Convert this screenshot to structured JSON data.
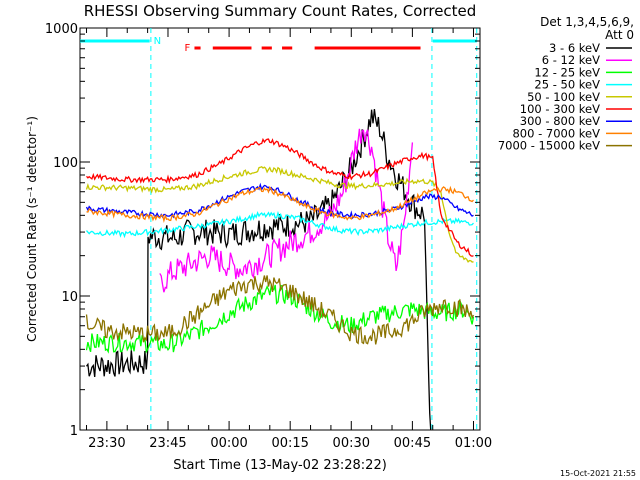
{
  "chart_data": {
    "type": "line",
    "title": "RHESSI Observing Summary Count Rates, Corrected",
    "xlabel": "Start Time (13-May-02 23:28:22)",
    "ylabel": "Corrected Count Rate (s⁻¹ detector⁻¹)",
    "yscale": "log",
    "ylim": [
      1,
      1000
    ],
    "xlim_minutes": [
      23.4,
      121.6
    ],
    "y_ticks": [
      {
        "value": 1,
        "label": "1"
      },
      {
        "value": 10,
        "label": "10"
      },
      {
        "value": 100,
        "label": "100"
      },
      {
        "value": 1000,
        "label": "1000"
      }
    ],
    "x_ticks": [
      {
        "minutes": 30,
        "label": "23:30"
      },
      {
        "minutes": 45,
        "label": "23:45"
      },
      {
        "minutes": 60,
        "label": "00:00"
      },
      {
        "minutes": 75,
        "label": "00:15"
      },
      {
        "minutes": 90,
        "label": "00:30"
      },
      {
        "minutes": 105,
        "label": "00:45"
      },
      {
        "minutes": 120,
        "label": "01:00"
      }
    ],
    "legend_header": [
      "Det 1,3,4,5,6,9,",
      "Att 0"
    ],
    "legend_position": "right",
    "series": [
      {
        "name": "3 - 6 keV",
        "color": "#000000",
        "points": [
          [
            25,
            3
          ],
          [
            40,
            3.2
          ],
          [
            40.1,
            28
          ],
          [
            47,
            27
          ],
          [
            50,
            30
          ],
          [
            55,
            30
          ],
          [
            60,
            29
          ],
          [
            65,
            31
          ],
          [
            70,
            33
          ],
          [
            75,
            34
          ],
          [
            80,
            36
          ],
          [
            85,
            48
          ],
          [
            90,
            90
          ],
          [
            93,
            150
          ],
          [
            95,
            220
          ],
          [
            97,
            180
          ],
          [
            99,
            110
          ],
          [
            101,
            80
          ],
          [
            104,
            55
          ],
          [
            106,
            45
          ],
          [
            108,
            40
          ],
          [
            109,
            2
          ],
          [
            109.5,
            1
          ]
        ]
      },
      {
        "name": "6 - 12 keV",
        "color": "#ff00ff",
        "points": [
          [
            43,
            12
          ],
          [
            46,
            15
          ],
          [
            50,
            17
          ],
          [
            55,
            20
          ],
          [
            60,
            17
          ],
          [
            63,
            16
          ],
          [
            67,
            18
          ],
          [
            71,
            21
          ],
          [
            75,
            25
          ],
          [
            80,
            30
          ],
          [
            85,
            40
          ],
          [
            88,
            60
          ],
          [
            91,
            130
          ],
          [
            93,
            190
          ],
          [
            95,
            130
          ],
          [
            97,
            60
          ],
          [
            99,
            28
          ],
          [
            101,
            16
          ],
          [
            103,
            35
          ],
          [
            105,
            140
          ]
        ]
      },
      {
        "name": "12 - 25 keV",
        "color": "#00ff00",
        "points": [
          [
            25,
            4.5
          ],
          [
            40,
            4.5
          ],
          [
            45,
            4.3
          ],
          [
            50,
            5
          ],
          [
            55,
            6
          ],
          [
            60,
            7.5
          ],
          [
            65,
            9
          ],
          [
            70,
            10.5
          ],
          [
            75,
            10
          ],
          [
            80,
            8
          ],
          [
            85,
            6.5
          ],
          [
            90,
            6
          ],
          [
            95,
            7
          ],
          [
            100,
            7.5
          ],
          [
            105,
            8
          ],
          [
            110,
            7.5
          ],
          [
            113,
            7.5
          ],
          [
            117,
            8
          ],
          [
            120,
            7
          ]
        ]
      },
      {
        "name": "25 - 50 keV",
        "color": "#00ffff",
        "points": [
          [
            25,
            30
          ],
          [
            35,
            29
          ],
          [
            45,
            31
          ],
          [
            55,
            34
          ],
          [
            62,
            37
          ],
          [
            67,
            40
          ],
          [
            72,
            40
          ],
          [
            77,
            38
          ],
          [
            82,
            34
          ],
          [
            87,
            31
          ],
          [
            92,
            30
          ],
          [
            97,
            31
          ],
          [
            102,
            33
          ],
          [
            107,
            35
          ],
          [
            112,
            36
          ],
          [
            116,
            36
          ],
          [
            120,
            35
          ]
        ]
      },
      {
        "name": "50 - 100 keV",
        "color": "#c8c800",
        "points": [
          [
            25,
            65
          ],
          [
            35,
            64
          ],
          [
            45,
            62
          ],
          [
            52,
            66
          ],
          [
            58,
            75
          ],
          [
            63,
            82
          ],
          [
            68,
            88
          ],
          [
            71,
            88
          ],
          [
            74,
            84
          ],
          [
            78,
            78
          ],
          [
            82,
            73
          ],
          [
            86,
            68
          ],
          [
            90,
            66
          ],
          [
            95,
            67
          ],
          [
            100,
            69
          ],
          [
            105,
            72
          ],
          [
            108,
            72
          ],
          [
            110,
            70
          ],
          [
            112,
            60
          ],
          [
            114,
            30
          ],
          [
            116,
            20
          ],
          [
            120,
            18
          ]
        ]
      },
      {
        "name": "100 - 300 keV",
        "color": "#ff0000",
        "points": [
          [
            25,
            78
          ],
          [
            35,
            74
          ],
          [
            45,
            74
          ],
          [
            52,
            80
          ],
          [
            58,
            98
          ],
          [
            63,
            122
          ],
          [
            67,
            140
          ],
          [
            70,
            145
          ],
          [
            74,
            130
          ],
          [
            78,
            110
          ],
          [
            82,
            92
          ],
          [
            86,
            82
          ],
          [
            90,
            78
          ],
          [
            95,
            82
          ],
          [
            100,
            95
          ],
          [
            105,
            108
          ],
          [
            108,
            112
          ],
          [
            110,
            105
          ],
          [
            112,
            40
          ],
          [
            116,
            25
          ],
          [
            120,
            20
          ]
        ]
      },
      {
        "name": "300 - 800 keV",
        "color": "#0000ff",
        "points": [
          [
            25,
            45
          ],
          [
            35,
            42
          ],
          [
            45,
            40
          ],
          [
            52,
            43
          ],
          [
            58,
            52
          ],
          [
            63,
            60
          ],
          [
            67,
            65
          ],
          [
            70,
            65
          ],
          [
            74,
            58
          ],
          [
            78,
            50
          ],
          [
            82,
            44
          ],
          [
            86,
            41
          ],
          [
            90,
            40
          ],
          [
            95,
            41
          ],
          [
            100,
            44
          ],
          [
            105,
            50
          ],
          [
            108,
            55
          ],
          [
            112,
            55
          ],
          [
            116,
            45
          ],
          [
            120,
            40
          ]
        ]
      },
      {
        "name": "800 - 7000 keV",
        "color": "#ff8000",
        "points": [
          [
            25,
            43
          ],
          [
            35,
            40
          ],
          [
            45,
            38
          ],
          [
            52,
            41
          ],
          [
            58,
            50
          ],
          [
            63,
            58
          ],
          [
            67,
            62
          ],
          [
            70,
            62
          ],
          [
            74,
            55
          ],
          [
            78,
            48
          ],
          [
            82,
            43
          ],
          [
            86,
            40
          ],
          [
            90,
            38
          ],
          [
            95,
            40
          ],
          [
            100,
            44
          ],
          [
            105,
            52
          ],
          [
            108,
            58
          ],
          [
            111,
            63
          ],
          [
            114,
            62
          ],
          [
            117,
            58
          ],
          [
            120,
            52
          ]
        ]
      },
      {
        "name": "7000 - 15000 keV",
        "color": "#8b7300",
        "points": [
          [
            25,
            6.3
          ],
          [
            30,
            5.5
          ],
          [
            40,
            5.2
          ],
          [
            45,
            5.2
          ],
          [
            50,
            6.5
          ],
          [
            55,
            8.5
          ],
          [
            60,
            11
          ],
          [
            65,
            12.5
          ],
          [
            70,
            12.5
          ],
          [
            75,
            11
          ],
          [
            80,
            8.8
          ],
          [
            85,
            7
          ],
          [
            90,
            5.3
          ],
          [
            95,
            5
          ],
          [
            100,
            5.4
          ],
          [
            105,
            6.5
          ],
          [
            108,
            7.7
          ],
          [
            113,
            8.8
          ],
          [
            117,
            8
          ],
          [
            120,
            7.2
          ]
        ]
      }
    ],
    "top_flags": [
      {
        "label": "N",
        "color": "#00ffff",
        "segments": [
          [
            23.4,
            40.5
          ],
          [
            110,
            120.8
          ]
        ]
      },
      {
        "label": "F",
        "color": "#ff0000",
        "segments": [
          [
            51.5,
            53
          ],
          [
            56,
            65.5
          ],
          [
            68,
            70.5
          ],
          [
            73,
            75.5
          ],
          [
            81,
            107
          ]
        ]
      }
    ],
    "night_boundaries": [
      40.8,
      109.8,
      120.8
    ],
    "footer": "15-Oct-2021 21:55"
  }
}
